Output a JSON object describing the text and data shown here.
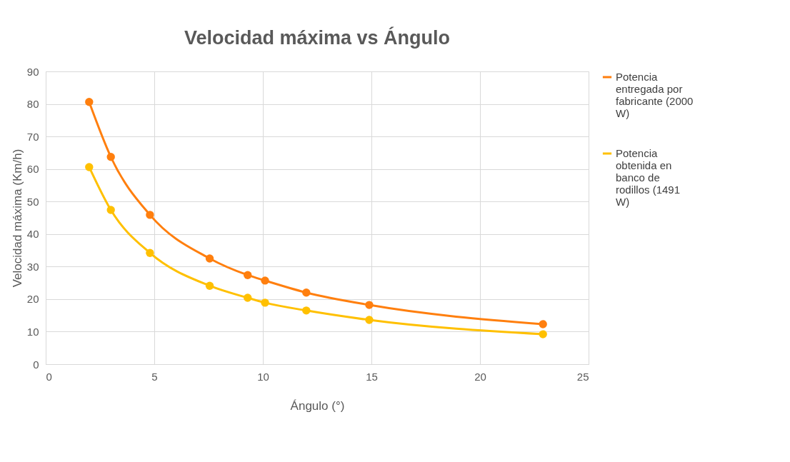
{
  "chart_data": {
    "type": "line",
    "title": "Velocidad máxima vs Ángulo",
    "xlabel": "Ángulo (°)",
    "ylabel": "Velocidad máxima (Km/h)",
    "x": [
      2,
      3,
      4.8,
      7.55,
      9.3,
      10.1,
      12,
      14.9,
      22.9
    ],
    "series": [
      {
        "name": "Potencia entregada por fabricante (2000 W)",
        "color": "#ff7f0e",
        "values": [
          80.6,
          63.7,
          45.9,
          32.5,
          27.4,
          25.7,
          22.0,
          18.2,
          12.3
        ]
      },
      {
        "name": "Potencia obtenida en banco de rodillos (1491 W)",
        "color": "#ffc000",
        "values": [
          60.6,
          47.4,
          34.2,
          24.1,
          20.4,
          18.9,
          16.5,
          13.6,
          9.2
        ]
      }
    ],
    "xlim": [
      0,
      25
    ],
    "xticks": [
      0,
      5,
      10,
      15,
      20,
      25
    ],
    "ylim": [
      0,
      90
    ],
    "yticks": [
      0,
      10,
      20,
      30,
      40,
      50,
      60,
      70,
      80,
      90
    ],
    "grid": true,
    "legend": "right",
    "marker": "circle",
    "line_style": "solid"
  }
}
